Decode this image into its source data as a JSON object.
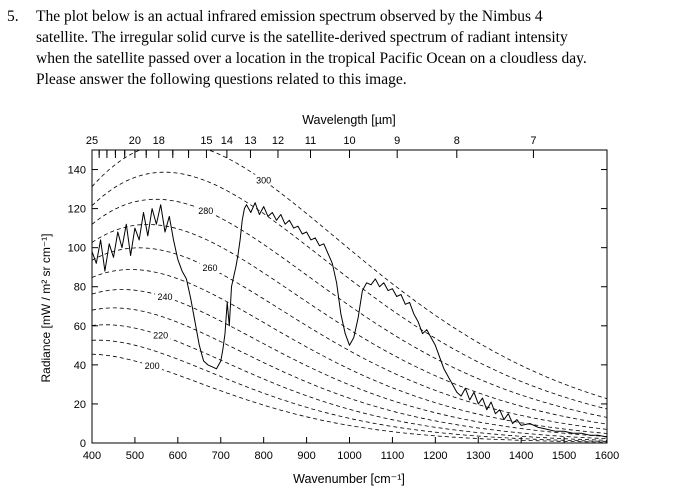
{
  "question": {
    "number": "5.",
    "lines": [
      "The plot below is an actual infrared emission spectrum observed by the Nimbus 4",
      "satellite. The irregular solid curve is the satellite-derived spectrum of radiant intensity",
      "when the satellite passed over a location in the tropical Pacific Ocean on a cloudless day.",
      "Please answer the following questions related to this image."
    ]
  },
  "chart_data": {
    "type": "line",
    "title": "",
    "xlabel": "Wavenumber [cm⁻¹]",
    "ylabel": "Radiance [mW / m² sr cm⁻¹]",
    "top_axis_label": "Wavelength [µm]",
    "xlim": [
      400,
      1600
    ],
    "ylim": [
      0,
      150
    ],
    "x_ticks": [
      400,
      500,
      600,
      700,
      800,
      900,
      1000,
      1100,
      1200,
      1300,
      1400,
      1500,
      1600
    ],
    "y_ticks": [
      0,
      20,
      40,
      60,
      80,
      100,
      120,
      140
    ],
    "top_ticks_um": [
      25,
      20,
      18,
      15,
      14,
      13,
      12,
      11,
      10,
      9,
      8,
      7
    ],
    "blackbody_temps_K": [
      300,
      290,
      280,
      270,
      260,
      250,
      240,
      230,
      220,
      210,
      200
    ],
    "blackbody_labels": [
      {
        "T": 300,
        "label": "300",
        "x": 800
      },
      {
        "T": 280,
        "label": "280",
        "x": 665
      },
      {
        "T": 260,
        "label": "260",
        "x": 675
      },
      {
        "T": 240,
        "label": "240",
        "x": 570
      },
      {
        "T": 220,
        "label": "220",
        "x": 560
      },
      {
        "T": 200,
        "label": "200",
        "x": 540
      }
    ],
    "series": [
      {
        "name": "Nimbus 4 observed spectrum",
        "x": [
          400,
          410,
          420,
          430,
          440,
          450,
          460,
          470,
          480,
          490,
          500,
          510,
          520,
          530,
          540,
          550,
          560,
          570,
          580,
          590,
          600,
          610,
          620,
          630,
          640,
          650,
          660,
          670,
          680,
          690,
          700,
          705,
          710,
          715,
          720,
          725,
          730,
          735,
          740,
          745,
          750,
          755,
          760,
          770,
          780,
          790,
          800,
          810,
          820,
          830,
          840,
          850,
          860,
          870,
          880,
          890,
          900,
          910,
          920,
          930,
          940,
          950,
          960,
          970,
          980,
          990,
          1000,
          1010,
          1020,
          1030,
          1040,
          1050,
          1060,
          1070,
          1080,
          1090,
          1100,
          1110,
          1120,
          1130,
          1140,
          1150,
          1160,
          1170,
          1180,
          1190,
          1200,
          1210,
          1220,
          1230,
          1240,
          1250,
          1260,
          1270,
          1280,
          1290,
          1300,
          1310,
          1320,
          1330,
          1340,
          1350,
          1360,
          1370,
          1380,
          1390,
          1400,
          1420,
          1440,
          1460,
          1480,
          1500,
          1520,
          1540,
          1560,
          1580,
          1600
        ],
        "y": [
          98,
          92,
          104,
          88,
          102,
          95,
          108,
          100,
          112,
          96,
          110,
          104,
          118,
          106,
          120,
          112,
          122,
          108,
          116,
          104,
          94,
          88,
          84,
          74,
          62,
          50,
          42,
          40,
          39,
          38,
          42,
          48,
          56,
          72,
          60,
          80,
          85,
          90,
          96,
          104,
          114,
          120,
          122,
          118,
          123,
          117,
          121,
          116,
          118,
          114,
          117,
          112,
          114,
          110,
          111,
          107,
          108,
          104,
          105,
          101,
          102,
          97,
          92,
          82,
          66,
          56,
          50,
          54,
          64,
          78,
          82,
          81,
          84,
          80,
          82,
          78,
          79,
          75,
          76,
          71,
          72,
          66,
          62,
          56,
          58,
          54,
          50,
          44,
          38,
          34,
          30,
          26,
          24,
          28,
          22,
          26,
          20,
          23,
          17,
          21,
          15,
          17,
          12,
          15,
          10,
          12,
          9,
          10,
          8,
          7,
          6,
          6,
          5,
          5,
          4,
          4,
          3
        ]
      }
    ]
  }
}
